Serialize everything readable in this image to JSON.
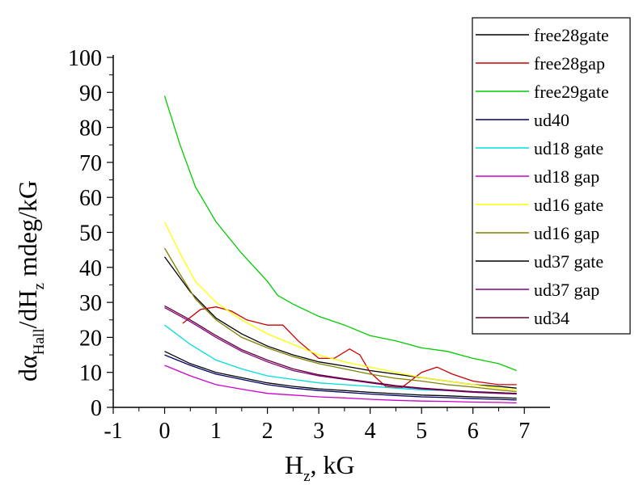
{
  "chart_data": {
    "type": "line",
    "title": "",
    "xlabel": {
      "main": "H",
      "sub": "z",
      "suffix": ", kG"
    },
    "ylabel": {
      "p1": "dα",
      "sub1": "Hall",
      "p2": "/dH",
      "sub2": "z",
      "p3": " mdeg/kG"
    },
    "xlim": [
      -1,
      7.5
    ],
    "ylim": [
      0,
      100
    ],
    "xticks": [
      -1,
      0,
      1,
      2,
      3,
      4,
      5,
      6,
      7
    ],
    "xtick_labels": [
      "-1",
      "0",
      "1",
      "2",
      "3",
      "4",
      "5",
      "6",
      "7"
    ],
    "yticks": [
      0,
      10,
      20,
      30,
      40,
      50,
      60,
      70,
      80,
      90,
      100
    ],
    "ytick_labels": [
      "0",
      "10",
      "20",
      "30",
      "40",
      "50",
      "60",
      "70",
      "80",
      "90",
      "100"
    ],
    "legend_position": "top-right",
    "series": [
      {
        "name": "free28gate",
        "color": "#000000",
        "points": [
          [
            0,
            43
          ],
          [
            0.5,
            33
          ],
          [
            1,
            25.5
          ],
          [
            1.5,
            21
          ],
          [
            2,
            17.5
          ],
          [
            2.5,
            15
          ],
          [
            3,
            13
          ],
          [
            3.5,
            11.8
          ],
          [
            4,
            10.5
          ],
          [
            4.5,
            9.5
          ],
          [
            5,
            8.5
          ],
          [
            5.5,
            7.5
          ],
          [
            6,
            6.5
          ],
          [
            6.5,
            6
          ],
          [
            6.85,
            5.5
          ]
        ]
      },
      {
        "name": "free28gap",
        "color": "#cc0000",
        "points": [
          [
            0.35,
            24
          ],
          [
            0.7,
            28
          ],
          [
            1,
            28.7
          ],
          [
            1.3,
            27.5
          ],
          [
            1.6,
            25
          ],
          [
            2,
            23.5
          ],
          [
            2.3,
            23.5
          ],
          [
            2.6,
            19
          ],
          [
            3,
            14
          ],
          [
            3.3,
            14
          ],
          [
            3.6,
            16.7
          ],
          [
            3.8,
            15
          ],
          [
            4,
            10
          ],
          [
            4.3,
            6
          ],
          [
            4.6,
            5.5
          ],
          [
            5,
            10
          ],
          [
            5.3,
            11.5
          ],
          [
            5.6,
            9.5
          ],
          [
            6,
            7.5
          ],
          [
            6.5,
            6.5
          ],
          [
            6.85,
            6.5
          ]
        ]
      },
      {
        "name": "free29gate",
        "color": "#00cc00",
        "points": [
          [
            0,
            89
          ],
          [
            0.3,
            75
          ],
          [
            0.6,
            63
          ],
          [
            1,
            53
          ],
          [
            1.5,
            44
          ],
          [
            2,
            36
          ],
          [
            2.2,
            32
          ],
          [
            2.5,
            29.5
          ],
          [
            3,
            26
          ],
          [
            3.5,
            23.5
          ],
          [
            4,
            20.5
          ],
          [
            4.5,
            19
          ],
          [
            5,
            17
          ],
          [
            5.5,
            16
          ],
          [
            6,
            14
          ],
          [
            6.5,
            12.5
          ],
          [
            6.85,
            10.5
          ]
        ]
      },
      {
        "name": "ud40",
        "color": "#000066",
        "points": [
          [
            0,
            15
          ],
          [
            0.5,
            12
          ],
          [
            1,
            9.5
          ],
          [
            1.5,
            8
          ],
          [
            2,
            6.5
          ],
          [
            2.5,
            5.5
          ],
          [
            3,
            4.8
          ],
          [
            3.5,
            4.3
          ],
          [
            4,
            3.8
          ],
          [
            4.5,
            3.4
          ],
          [
            5,
            3
          ],
          [
            5.5,
            2.8
          ],
          [
            6,
            2.5
          ],
          [
            6.5,
            2.3
          ],
          [
            6.85,
            2.1
          ]
        ]
      },
      {
        "name": "ud18 gate",
        "color": "#00dddd",
        "points": [
          [
            0,
            23.5
          ],
          [
            0.5,
            18
          ],
          [
            1,
            13.5
          ],
          [
            1.5,
            11
          ],
          [
            2,
            9
          ],
          [
            2.5,
            8
          ],
          [
            3,
            7
          ],
          [
            3.5,
            6.5
          ],
          [
            4,
            6
          ],
          [
            4.5,
            5.5
          ],
          [
            5,
            5
          ],
          [
            5.5,
            4.8
          ],
          [
            6,
            4.5
          ],
          [
            6.5,
            4.2
          ],
          [
            6.85,
            4
          ]
        ]
      },
      {
        "name": "ud18 gap",
        "color": "#cc00cc",
        "points": [
          [
            0,
            12
          ],
          [
            0.5,
            9
          ],
          [
            1,
            6.5
          ],
          [
            1.5,
            5.2
          ],
          [
            2,
            4
          ],
          [
            2.5,
            3.5
          ],
          [
            3,
            3
          ],
          [
            3.5,
            2.7
          ],
          [
            4,
            2.3
          ],
          [
            4.5,
            2
          ],
          [
            5,
            1.8
          ],
          [
            5.5,
            1.7
          ],
          [
            6,
            1.5
          ],
          [
            6.5,
            1.4
          ],
          [
            6.85,
            1.3
          ]
        ]
      },
      {
        "name": "ud16 gate",
        "color": "#ffff00",
        "points": [
          [
            0,
            53
          ],
          [
            0.3,
            44
          ],
          [
            0.6,
            36
          ],
          [
            1,
            30
          ],
          [
            1.5,
            25
          ],
          [
            2,
            21
          ],
          [
            2.5,
            18
          ],
          [
            3,
            15
          ],
          [
            3.5,
            13
          ],
          [
            4,
            11.5
          ],
          [
            4.5,
            10
          ],
          [
            5,
            8.5
          ],
          [
            5.5,
            7.5
          ],
          [
            6,
            6.5
          ],
          [
            6.5,
            5.5
          ],
          [
            6.85,
            5
          ]
        ]
      },
      {
        "name": "ud16 gap",
        "color": "#808000",
        "points": [
          [
            0,
            45.5
          ],
          [
            0.3,
            38
          ],
          [
            0.6,
            31
          ],
          [
            1,
            25
          ],
          [
            1.5,
            20
          ],
          [
            2,
            17
          ],
          [
            2.5,
            14.5
          ],
          [
            3,
            12.5
          ],
          [
            3.5,
            11
          ],
          [
            4,
            9.5
          ],
          [
            4.5,
            8.3
          ],
          [
            5,
            7.5
          ],
          [
            5.5,
            6.5
          ],
          [
            6,
            5.8
          ],
          [
            6.5,
            5
          ],
          [
            6.85,
            4.5
          ]
        ]
      },
      {
        "name": "ud37 gate",
        "color": "#000000",
        "points": [
          [
            0,
            16
          ],
          [
            0.5,
            12.5
          ],
          [
            1,
            10
          ],
          [
            1.5,
            8.5
          ],
          [
            2,
            7
          ],
          [
            2.5,
            6
          ],
          [
            3,
            5.3
          ],
          [
            3.5,
            4.8
          ],
          [
            4,
            4.3
          ],
          [
            4.5,
            3.9
          ],
          [
            5,
            3.5
          ],
          [
            5.5,
            3.3
          ],
          [
            6,
            3
          ],
          [
            6.5,
            2.8
          ],
          [
            6.85,
            2.6
          ]
        ]
      },
      {
        "name": "ud37 gap",
        "color": "#800080",
        "points": [
          [
            0,
            28.5
          ],
          [
            0.5,
            24.5
          ],
          [
            1,
            20
          ],
          [
            1.5,
            16
          ],
          [
            2,
            13
          ],
          [
            2.5,
            10.5
          ],
          [
            3,
            9
          ],
          [
            3.5,
            8
          ],
          [
            4,
            7
          ],
          [
            4.5,
            6
          ],
          [
            5,
            5.3
          ],
          [
            5.5,
            4.8
          ],
          [
            6,
            4.3
          ],
          [
            6.5,
            4
          ],
          [
            6.85,
            3.8
          ]
        ]
      },
      {
        "name": "ud34",
        "color": "#660033",
        "points": [
          [
            0,
            29
          ],
          [
            0.5,
            25
          ],
          [
            1,
            20.5
          ],
          [
            1.5,
            16.5
          ],
          [
            2,
            13.5
          ],
          [
            2.5,
            11
          ],
          [
            3,
            9.3
          ],
          [
            3.5,
            8.2
          ],
          [
            4,
            7.2
          ],
          [
            4.5,
            6.2
          ],
          [
            5,
            5.5
          ],
          [
            5.5,
            5
          ],
          [
            6,
            4.5
          ],
          [
            6.5,
            4.2
          ],
          [
            6.85,
            4
          ]
        ]
      }
    ]
  }
}
